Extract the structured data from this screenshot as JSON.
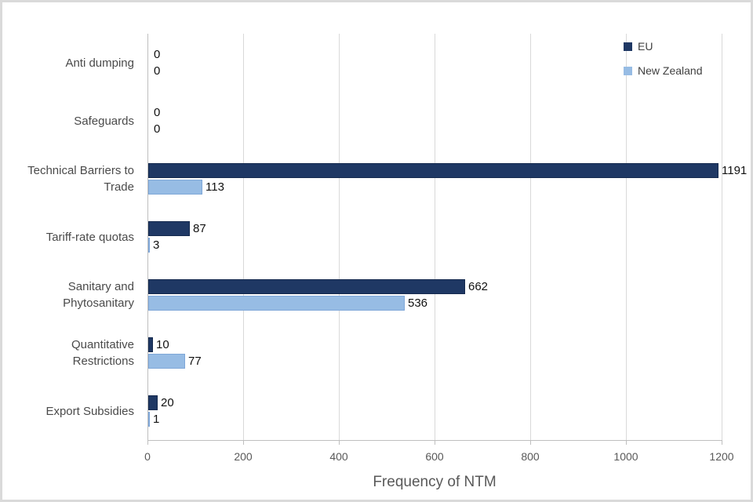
{
  "chart_data": {
    "type": "bar",
    "orientation": "horizontal",
    "title": "",
    "xlabel": "Frequency of NTM",
    "ylabel": "",
    "xlim": [
      0,
      1200
    ],
    "x_ticks": [
      "0",
      "200",
      "400",
      "600",
      "800",
      "1000",
      "1200"
    ],
    "grid": true,
    "legend_position": "top-right",
    "categories": [
      "Anti dumping",
      "Safeguards",
      "Technical Barriers to\nTrade",
      "Tariff-rate quotas",
      "Sanitary and\nPhytosanitary",
      "Quantitative\nRestrictions",
      "Export Subsidies"
    ],
    "series": [
      {
        "name": "EU",
        "color": "#1F3864",
        "border_color": "#152A4E",
        "values": [
          0,
          0,
          1191,
          87,
          662,
          10,
          20
        ]
      },
      {
        "name": "New Zealand",
        "color": "#97BCE4",
        "border_color": "#7FA7D8",
        "values": [
          0,
          0,
          113,
          3,
          536,
          77,
          1
        ]
      }
    ],
    "value_labels_shown": true
  }
}
